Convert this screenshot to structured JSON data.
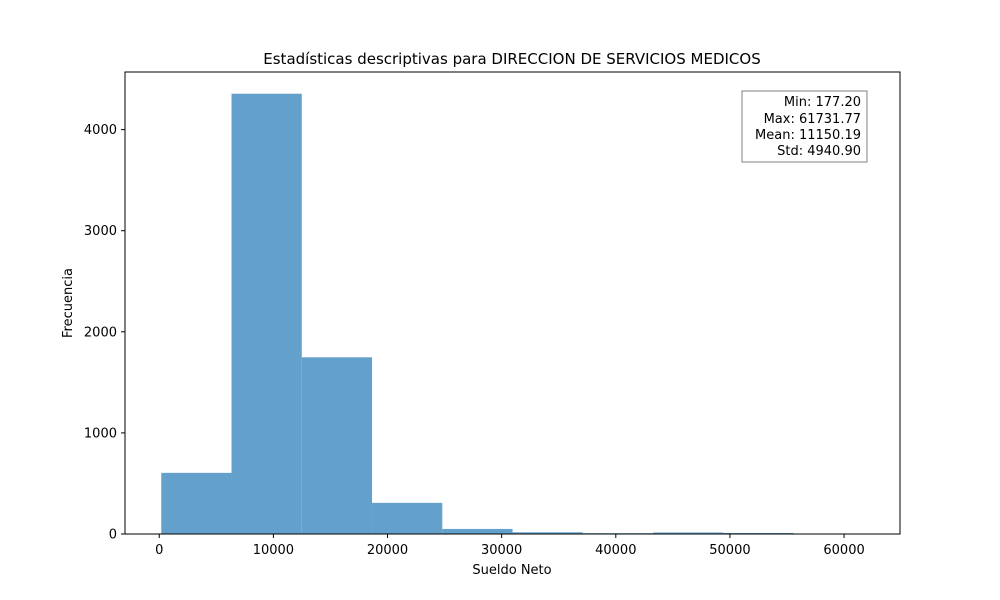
{
  "chart_data": {
    "type": "bar",
    "title": "Estadísticas descriptivas para DIRECCION DE SERVICIOS MEDICOS",
    "xlabel": "Sueldo Neto",
    "ylabel": "Frecuencia",
    "bin_edges": [
      177.2,
      6332.66,
      12488.11,
      18643.57,
      24799.03,
      30954.49,
      37109.94,
      43265.4,
      49420.86,
      55576.31,
      61731.77
    ],
    "values": [
      605,
      4355,
      1748,
      308,
      50,
      17,
      8,
      15,
      10,
      2
    ],
    "xlim": [
      -3000,
      64900
    ],
    "ylim": [
      0,
      4570
    ],
    "xticks": [
      0,
      10000,
      20000,
      30000,
      40000,
      50000,
      60000
    ],
    "yticks": [
      0,
      1000,
      2000,
      3000,
      4000
    ],
    "bar_color": "#63a1cc",
    "grid": false,
    "stats_box_position": "top-right",
    "stats": [
      "Min: 177.20",
      "Max: 61731.77",
      "Mean: 11150.19",
      "Std: 4940.90"
    ]
  }
}
